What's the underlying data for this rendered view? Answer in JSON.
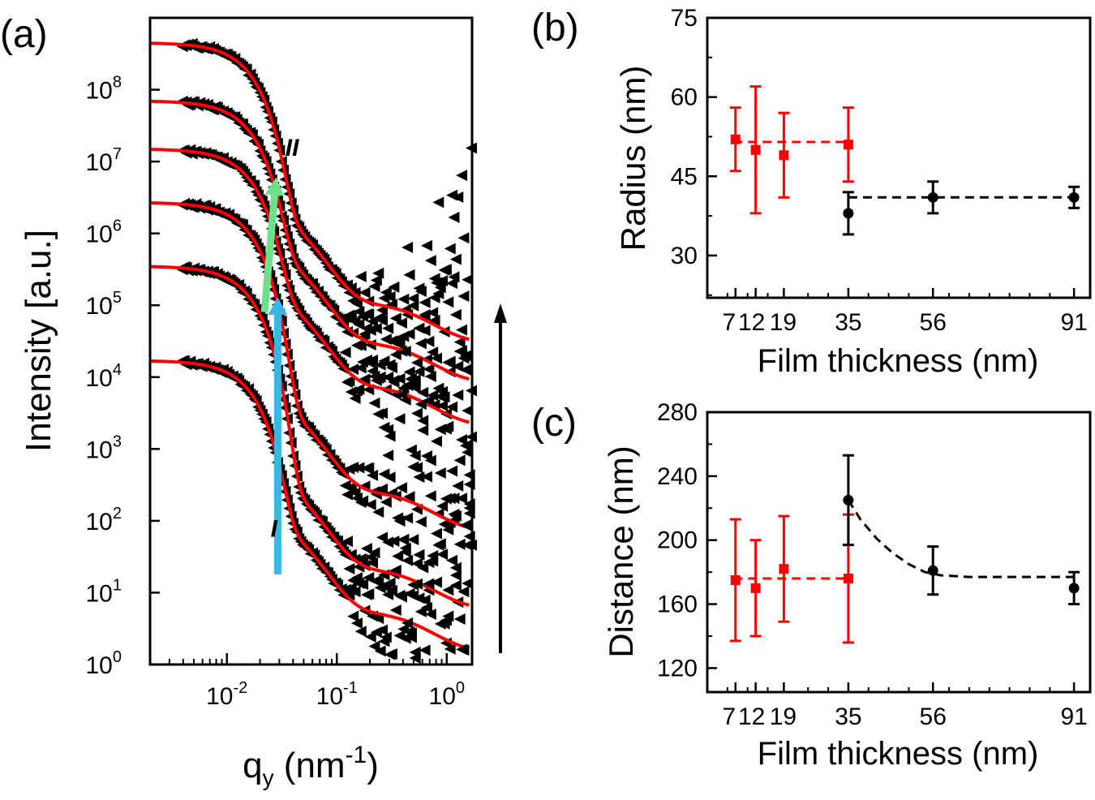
{
  "chart_data": [
    {
      "panel": "(a)",
      "type": "line",
      "title": "",
      "xlabel_main": "q",
      "xlabel_sub": "y",
      "xlabel_unit_pre": " (nm",
      "xlabel_unit_sup": "-1",
      "xlabel_unit_post": ")",
      "ylabel": "Intensity [a.u.]",
      "xscale": "log",
      "yscale": "log",
      "xlim": [
        0.002,
        1.7
      ],
      "ylim": [
        1,
        1000000000
      ],
      "x_ticks": [
        {
          "v": 0.01,
          "base": "10",
          "exp": "-2"
        },
        {
          "v": 0.1,
          "base": "10",
          "exp": "-1"
        },
        {
          "v": 1,
          "base": "10",
          "exp": "0"
        }
      ],
      "y_ticks": [
        {
          "v": 1,
          "base": "10",
          "exp": "0"
        },
        {
          "v": 10,
          "base": "10",
          "exp": "1"
        },
        {
          "v": 100,
          "base": "10",
          "exp": "2"
        },
        {
          "v": 1000,
          "base": "10",
          "exp": "3"
        },
        {
          "v": 10000,
          "base": "10",
          "exp": "4"
        },
        {
          "v": 100000,
          "base": "10",
          "exp": "5"
        },
        {
          "v": 1000000,
          "base": "10",
          "exp": "6"
        },
        {
          "v": 10000000,
          "base": "10",
          "exp": "7"
        },
        {
          "v": 100000000,
          "base": "10",
          "exp": "8"
        }
      ],
      "curves": [
        {
          "plateau": 17000,
          "base": 2.5
        },
        {
          "plateau": 350000,
          "base": 10
        },
        {
          "plateau": 2700000,
          "base": 120
        },
        {
          "plateau": 15000000,
          "base": 3500
        },
        {
          "plateau": 70000000,
          "base": 14000
        },
        {
          "plateau": 450000000,
          "base": 50000
        }
      ],
      "data_color": "#000000",
      "fit_color": "#ff0000",
      "annotations": [
        {
          "text": "I",
          "x": 0.025,
          "y": 60,
          "arrow_color": "#3cb4e6",
          "arrow_from": [
            0.029,
            18
          ],
          "arrow_to": [
            0.029,
            130000
          ]
        },
        {
          "text": "II",
          "x": 0.034,
          "y": 12000000,
          "arrow_color": "#6de08a",
          "arrow_from": [
            0.022,
            80000
          ],
          "arrow_to": [
            0.028,
            6000000
          ]
        }
      ]
    },
    {
      "panel": "(b)",
      "type": "scatter",
      "title": "",
      "xlabel": "Film thickness (nm)",
      "ylabel": "Radius (nm)",
      "xlim": [
        0,
        95
      ],
      "ylim": [
        22,
        75
      ],
      "x_ticks": [
        {
          "v": 7,
          "label": "7"
        },
        {
          "v": 12,
          "label": "12"
        },
        {
          "v": 19,
          "label": "19"
        },
        {
          "v": 35,
          "label": "35"
        },
        {
          "v": 56,
          "label": "56"
        },
        {
          "v": 91,
          "label": "91"
        }
      ],
      "x_label_positions": [
        5.4,
        11,
        18.8,
        35,
        56,
        91
      ],
      "y_ticks": [
        30,
        45,
        60,
        75
      ],
      "series": [
        {
          "color": "#ff0000",
          "marker": "square",
          "points": [
            {
              "x": 7,
              "y": 52,
              "lo": 46,
              "hi": 58
            },
            {
              "x": 12,
              "y": 50,
              "lo": 38,
              "hi": 62
            },
            {
              "x": 19,
              "y": 49,
              "lo": 41,
              "hi": 57
            },
            {
              "x": 35,
              "y": 51,
              "lo": 44,
              "hi": 58
            }
          ]
        },
        {
          "color": "#000000",
          "marker": "circle",
          "points": [
            {
              "x": 35,
              "y": 38,
              "lo": 34,
              "hi": 42
            },
            {
              "x": 56,
              "y": 41,
              "lo": 38,
              "hi": 44
            },
            {
              "x": 91,
              "y": 41,
              "lo": 39,
              "hi": 43
            }
          ]
        }
      ],
      "fit_lines": [
        {
          "color": "#ff0000",
          "points": [
            [
              6.5,
              51.5
            ],
            [
              35,
              51.5
            ]
          ]
        },
        {
          "color": "#000000",
          "points": [
            [
              35,
              41
            ],
            [
              91,
              41
            ]
          ]
        }
      ]
    },
    {
      "panel": "(c)",
      "type": "scatter",
      "title": "",
      "xlabel": "Film thickness (nm)",
      "ylabel": "Distance (nm)",
      "xlim": [
        0,
        95
      ],
      "ylim": [
        105,
        280
      ],
      "x_ticks": [
        {
          "v": 7,
          "label": "7"
        },
        {
          "v": 12,
          "label": "12"
        },
        {
          "v": 19,
          "label": "19"
        },
        {
          "v": 35,
          "label": "35"
        },
        {
          "v": 56,
          "label": "56"
        },
        {
          "v": 91,
          "label": "91"
        }
      ],
      "x_label_positions": [
        5.4,
        11,
        18.8,
        35,
        56,
        91
      ],
      "y_ticks": [
        120,
        160,
        200,
        240,
        280
      ],
      "series": [
        {
          "color": "#ff0000",
          "marker": "square",
          "points": [
            {
              "x": 7,
              "y": 175,
              "lo": 137,
              "hi": 213
            },
            {
              "x": 12,
              "y": 170,
              "lo": 140,
              "hi": 200
            },
            {
              "x": 19,
              "y": 182,
              "lo": 149,
              "hi": 215
            },
            {
              "x": 35,
              "y": 176,
              "lo": 136,
              "hi": 216
            }
          ]
        },
        {
          "color": "#000000",
          "marker": "circle",
          "points": [
            {
              "x": 35,
              "y": 225,
              "lo": 197,
              "hi": 253
            },
            {
              "x": 56,
              "y": 181,
              "lo": 166,
              "hi": 196
            },
            {
              "x": 91,
              "y": 170,
              "lo": 160,
              "hi": 180
            }
          ]
        }
      ],
      "fit_lines": [
        {
          "color": "#ff0000",
          "points": [
            [
              6.5,
              176
            ],
            [
              35,
              176
            ]
          ]
        },
        {
          "color": "#000000",
          "points": [
            [
              35,
              225
            ],
            [
              38,
              213
            ],
            [
              42,
              201
            ],
            [
              46,
              192
            ],
            [
              50,
              185
            ],
            [
              54,
              180
            ],
            [
              58,
              178
            ],
            [
              65,
              177
            ],
            [
              75,
              177
            ],
            [
              91,
              177
            ]
          ]
        }
      ]
    }
  ]
}
